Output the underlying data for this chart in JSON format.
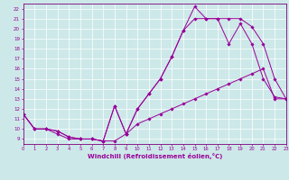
{
  "xlabel": "Windchill (Refroidissement éolien,°C)",
  "bg_color": "#cde8e8",
  "line_color": "#990099",
  "marker": "D",
  "lines": [
    {
      "x": [
        0,
        1,
        2,
        3,
        4,
        5,
        6,
        7,
        8,
        9,
        10,
        11,
        12,
        13,
        14,
        15,
        16,
        17,
        18,
        19,
        20,
        21,
        22,
        23
      ],
      "y": [
        11.5,
        10.0,
        10.0,
        9.5,
        9.0,
        9.0,
        9.0,
        8.8,
        8.8,
        9.5,
        10.5,
        11.0,
        11.5,
        12.0,
        12.5,
        13.0,
        13.5,
        14.0,
        14.5,
        15.0,
        15.5,
        16.0,
        13.0,
        13.0
      ]
    },
    {
      "x": [
        0,
        1,
        2,
        3,
        4,
        5,
        6,
        7,
        8,
        9,
        10,
        11,
        12,
        13,
        14,
        15,
        16,
        17,
        18,
        19,
        20,
        21,
        22,
        23
      ],
      "y": [
        11.5,
        10.0,
        10.0,
        9.8,
        9.2,
        9.0,
        9.0,
        8.8,
        12.3,
        9.5,
        12.0,
        13.5,
        15.0,
        17.2,
        19.8,
        21.0,
        21.0,
        21.0,
        18.5,
        20.5,
        18.5,
        15.0,
        13.2,
        13.0
      ]
    },
    {
      "x": [
        0,
        1,
        2,
        3,
        4,
        5,
        6,
        7,
        8,
        9,
        10,
        11,
        12,
        13,
        14,
        15,
        16,
        17,
        18,
        19,
        20,
        21,
        22,
        23
      ],
      "y": [
        11.5,
        10.0,
        10.0,
        9.8,
        9.2,
        9.0,
        9.0,
        8.8,
        12.3,
        9.5,
        12.0,
        13.5,
        15.0,
        17.2,
        19.8,
        22.2,
        21.0,
        21.0,
        21.0,
        21.0,
        20.2,
        18.5,
        15.0,
        13.0
      ]
    }
  ],
  "xlim": [
    0,
    23
  ],
  "ylim": [
    8.5,
    22.5
  ],
  "xticks": [
    0,
    1,
    2,
    3,
    4,
    5,
    6,
    7,
    8,
    9,
    10,
    11,
    12,
    13,
    14,
    15,
    16,
    17,
    18,
    19,
    20,
    21,
    22,
    23
  ],
  "yticks": [
    9,
    10,
    11,
    12,
    13,
    14,
    15,
    16,
    17,
    18,
    19,
    20,
    21,
    22
  ],
  "grid_color": "#ffffff",
  "spine_color": "#7b007b"
}
